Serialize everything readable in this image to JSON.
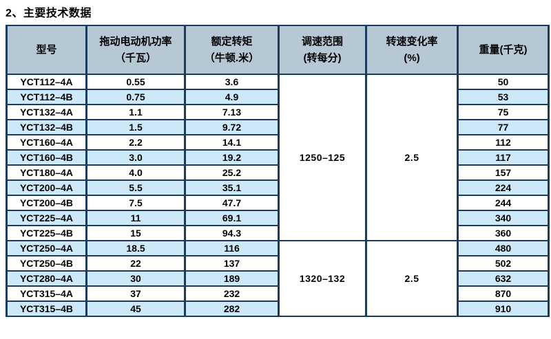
{
  "title": "2、主要技术数据",
  "colors": {
    "border": "#1a3a5e",
    "header_bg": "#b7c8d5",
    "row_alt_bg": "#cde9f8",
    "text": "#000000",
    "page_bg": "#ffffff"
  },
  "table": {
    "headers": [
      {
        "line1": "型号",
        "line2": ""
      },
      {
        "line1": "拖动电动机功率",
        "line2": "（千瓦）"
      },
      {
        "line1": "额定转矩",
        "line2": "（牛顿.米）"
      },
      {
        "line1": "调速范围",
        "line2": "(转每分)"
      },
      {
        "line1": "转速变化率",
        "line2": "(%)"
      },
      {
        "line1": "重量(千克)",
        "line2": ""
      }
    ],
    "rows": [
      {
        "model": "YCT112–4A",
        "power": "0.55",
        "torque": "3.6",
        "weight": "50"
      },
      {
        "model": "YCT112–4B",
        "power": "0.75",
        "torque": "4.9",
        "weight": "53"
      },
      {
        "model": "YCT132–4A",
        "power": "1.1",
        "torque": "7.13",
        "weight": "75"
      },
      {
        "model": "YCT132–4B",
        "power": "1.5",
        "torque": "9.72",
        "weight": "77"
      },
      {
        "model": "YCT160–4A",
        "power": "2.2",
        "torque": "14.1",
        "weight": "112"
      },
      {
        "model": "YCT160–4B",
        "power": "3.0",
        "torque": "19.2",
        "weight": "117"
      },
      {
        "model": "YCT180–4A",
        "power": "4.0",
        "torque": "25.2",
        "weight": "157"
      },
      {
        "model": "YCT200–4A",
        "power": "5.5",
        "torque": "35.1",
        "weight": "224"
      },
      {
        "model": "YCT200–4B",
        "power": "7.5",
        "torque": "47.7",
        "weight": "244"
      },
      {
        "model": "YCT225–4A",
        "power": "11",
        "torque": "69.1",
        "weight": "340"
      },
      {
        "model": "YCT225–4B",
        "power": "15",
        "torque": "94.3",
        "weight": "360"
      },
      {
        "model": "YCT250–4A",
        "power": "18.5",
        "torque": "116",
        "weight": "480"
      },
      {
        "model": "YCT250–4B",
        "power": "22",
        "torque": "137",
        "weight": "502"
      },
      {
        "model": "YCT280–4A",
        "power": "30",
        "torque": "189",
        "weight": "632"
      },
      {
        "model": "YCT315–4A",
        "power": "37",
        "torque": "232",
        "weight": "870"
      },
      {
        "model": "YCT315–4B",
        "power": "45",
        "torque": "282",
        "weight": "910"
      }
    ],
    "groups": [
      {
        "speed_range": "1250–125",
        "rate": "2.5",
        "start": 0,
        "span": 11
      },
      {
        "speed_range": "1320–132",
        "rate": "2.5",
        "start": 11,
        "span": 5
      }
    ]
  }
}
